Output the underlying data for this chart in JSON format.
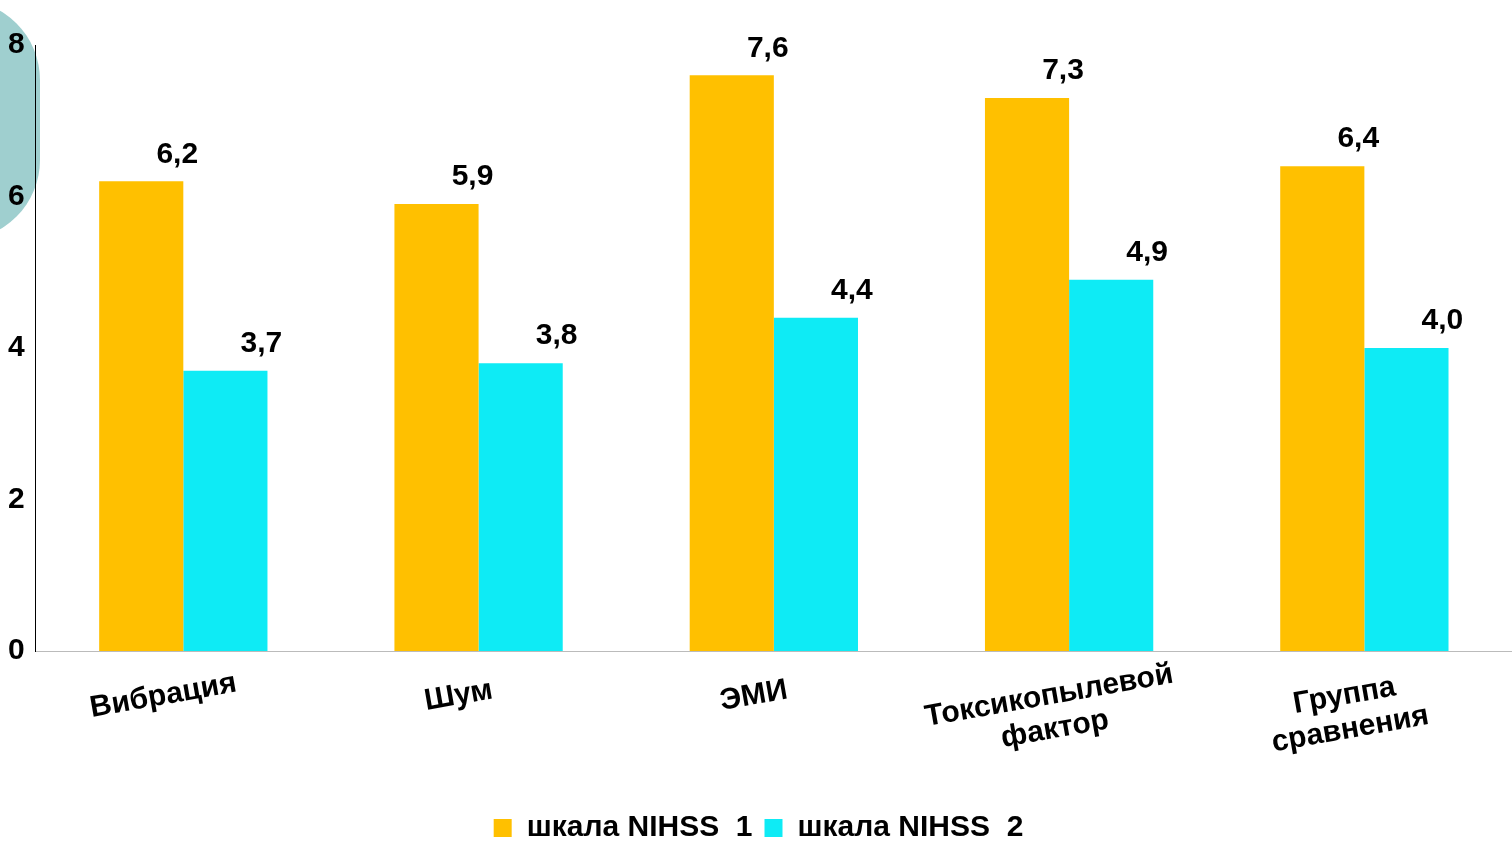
{
  "chart_data": {
    "type": "bar",
    "categories": [
      "Вибрация",
      "Шум",
      "ЭМИ",
      "Токсикопылевой  фактор",
      "Группа сравнения"
    ],
    "series": [
      {
        "name": "шкала NIHSS  1",
        "color": "#ffc000",
        "values": [
          6.2,
          5.9,
          7.6,
          7.3,
          6.4
        ],
        "value_labels": [
          "6,2",
          "5,9",
          "7,6",
          "7,3",
          "6,4"
        ]
      },
      {
        "name": "шкала NIHSS  2",
        "color": "#0eebf5",
        "values": [
          3.7,
          3.8,
          4.4,
          4.9,
          4.0
        ],
        "value_labels": [
          "3,7",
          "3,8",
          "4,4",
          "4,9",
          "4,0"
        ]
      }
    ],
    "ylim": [
      0,
      8
    ],
    "yticks": [
      0,
      2,
      4,
      6,
      8
    ],
    "grid": false,
    "legend": "bottom"
  }
}
